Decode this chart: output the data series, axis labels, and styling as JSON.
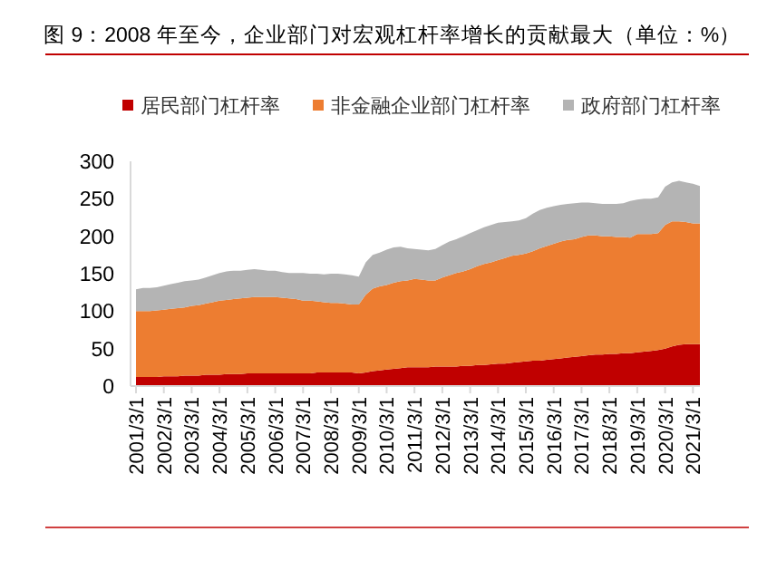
{
  "chart_data": {
    "type": "area",
    "stacked": true,
    "title": "图 9：2008 年至今，企业部门对宏观杠杆率增长的贡献最大（单位：%）",
    "legend": "top",
    "ylim": [
      0,
      300
    ],
    "yticks": [
      0,
      50,
      100,
      150,
      200,
      250,
      300
    ],
    "categories": [
      "2001/3/1",
      null,
      null,
      null,
      "2002/3/1",
      null,
      null,
      null,
      "2003/3/1",
      null,
      null,
      null,
      "2004/3/1",
      null,
      null,
      null,
      "2005/3/1",
      null,
      null,
      null,
      "2006/3/1",
      null,
      null,
      null,
      "2007/3/1",
      null,
      null,
      null,
      "2008/3/1",
      null,
      null,
      null,
      "2009/3/1",
      null,
      null,
      null,
      "2010/3/1",
      null,
      null,
      null,
      "2011/3/1",
      null,
      null,
      null,
      "2012/3/1",
      null,
      null,
      null,
      "2013/3/1",
      null,
      null,
      null,
      "2014/3/1",
      null,
      null,
      null,
      "2015/3/1",
      null,
      null,
      null,
      "2016/3/1",
      null,
      null,
      null,
      "2017/3/1",
      null,
      null,
      null,
      "2018/3/1",
      null,
      null,
      null,
      "2019/3/1",
      null,
      null,
      null,
      "2020/3/1",
      null,
      null,
      null,
      "2021/3/1",
      null
    ],
    "series": [
      {
        "name": "居民部门杠杆率",
        "color": "#c00000",
        "values": [
          12,
          12,
          12,
          12,
          13,
          13,
          13,
          14,
          14,
          14,
          15,
          15,
          15,
          16,
          16,
          16,
          17,
          17,
          17,
          17,
          17,
          17,
          17,
          17,
          17,
          17,
          18,
          18,
          18,
          18,
          18,
          18,
          17,
          18,
          20,
          21,
          22,
          23,
          24,
          25,
          25,
          25,
          25,
          26,
          26,
          26,
          26,
          27,
          27,
          28,
          28,
          29,
          30,
          30,
          31,
          32,
          33,
          34,
          34,
          35,
          36,
          37,
          38,
          39,
          40,
          41,
          42,
          42,
          43,
          43,
          44,
          44,
          45,
          46,
          47,
          48,
          50,
          53,
          55,
          56,
          56,
          56
        ]
      },
      {
        "name": "非金融企业部门杠杆率",
        "color": "#ed7d31",
        "values": [
          88,
          88,
          88,
          89,
          89,
          90,
          91,
          91,
          93,
          94,
          95,
          97,
          99,
          99,
          100,
          101,
          101,
          102,
          102,
          102,
          102,
          101,
          100,
          99,
          97,
          97,
          95,
          94,
          93,
          93,
          92,
          91,
          92,
          104,
          110,
          112,
          113,
          115,
          116,
          116,
          118,
          117,
          116,
          115,
          119,
          122,
          125,
          126,
          129,
          132,
          135,
          136,
          138,
          141,
          143,
          143,
          144,
          146,
          150,
          152,
          154,
          156,
          157,
          157,
          159,
          160,
          159,
          158,
          157,
          156,
          155,
          154,
          158,
          157,
          156,
          156,
          165,
          167,
          165,
          163,
          161,
          161
        ]
      },
      {
        "name": "政府部门杠杆率",
        "color": "#b4b4b4",
        "values": [
          29,
          31,
          31,
          31,
          32,
          33,
          34,
          35,
          34,
          34,
          35,
          36,
          37,
          38,
          38,
          37,
          37,
          37,
          36,
          35,
          35,
          34,
          34,
          35,
          37,
          36,
          37,
          37,
          39,
          39,
          39,
          39,
          37,
          43,
          45,
          45,
          47,
          47,
          46,
          43,
          40,
          40,
          40,
          42,
          43,
          45,
          45,
          47,
          48,
          48,
          49,
          50,
          50,
          48,
          46,
          46,
          47,
          50,
          51,
          51,
          50,
          49,
          48,
          48,
          46,
          44,
          43,
          43,
          43,
          44,
          45,
          49,
          46,
          47,
          47,
          48,
          51,
          52,
          54,
          53,
          53,
          50
        ]
      }
    ]
  }
}
